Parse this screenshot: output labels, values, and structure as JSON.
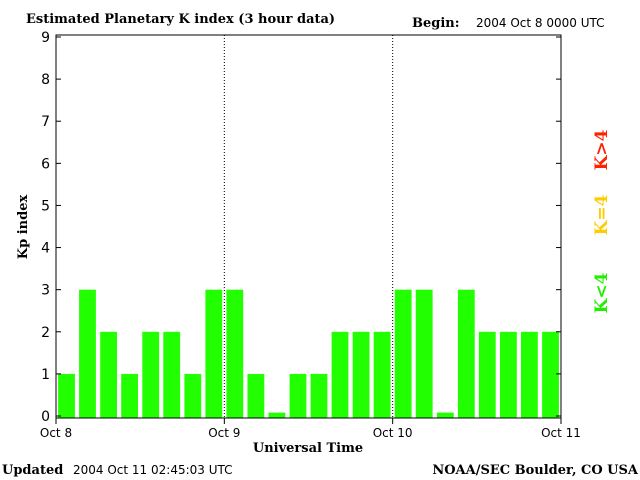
{
  "header": {
    "title": "Estimated Planetary K index (3 hour data)",
    "begin_label": "Begin:",
    "begin_value": "2004 Oct 8 0000 UTC"
  },
  "footer": {
    "updated_label": "Updated",
    "updated_value": "2004 Oct 11 02:45:03 UTC",
    "source": "NOAA/SEC Boulder, CO USA"
  },
  "legend": {
    "items": [
      {
        "label": "K<4",
        "color": "#22ee00"
      },
      {
        "label": "K=4",
        "color": "#ffcc00"
      },
      {
        "label": "K>4",
        "color": "#ff2200"
      }
    ]
  },
  "colors": {
    "bar": "#22ff00",
    "axis": "#000000",
    "background": "#ffffff"
  },
  "chart_data": {
    "type": "bar",
    "title": "Estimated Planetary K index (3 hour data)",
    "xlabel": "Universal Time",
    "ylabel": "Kp index",
    "ylim": [
      0,
      9
    ],
    "yticks": [
      "0",
      "1",
      "2",
      "3",
      "4",
      "5",
      "6",
      "7",
      "8",
      "9"
    ],
    "xtick_labels": [
      "Oct 8",
      "Oct 9",
      "Oct 10",
      "Oct 11"
    ],
    "day_dividers": [
      "Oct 9",
      "Oct 10"
    ],
    "grid": false,
    "values": [
      1,
      3,
      2,
      1,
      2,
      2,
      1,
      3,
      3,
      1,
      0,
      1,
      1,
      2,
      2,
      2,
      3,
      3,
      0,
      3,
      2,
      2,
      2,
      2
    ]
  }
}
